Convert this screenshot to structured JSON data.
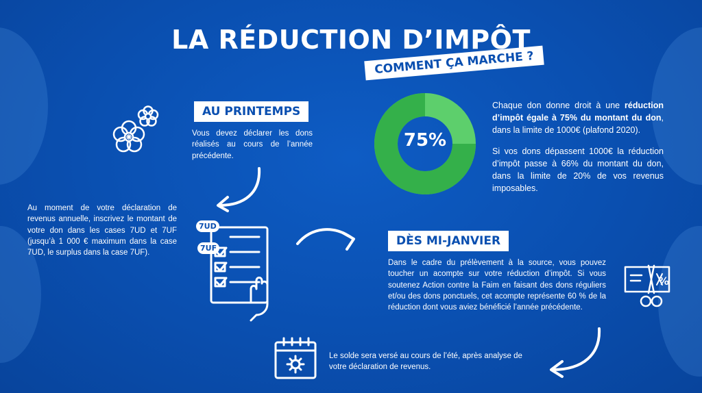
{
  "header": {
    "title": "LA RÉDUCTION D’IMPÔT",
    "subtitle": "COMMENT ÇA MARCHE ?"
  },
  "spring": {
    "tag": "AU PRINTEMPS",
    "text": "Vous devez déclarer les dons réalisés au cours de l’année précédente."
  },
  "declaration": {
    "text": "Au moment de votre déclaration de revenus annuelle, inscrivez le montant de votre don dans les cases 7UD et 7UF (jusqu’à 1 000 € maximum dans la case 7UD, le surplus dans la case 7UF).",
    "box_labels": [
      "7UD",
      "7UF"
    ]
  },
  "donut": {
    "value_label": "75%",
    "fraction": 0.75,
    "colors": {
      "filled": "#34b04a",
      "rest": "#5dcf6c",
      "hole": "#0a4fb0"
    }
  },
  "rates": {
    "p1_start": "Chaque don donne droit à une ",
    "p1_bold": "réduction d’impôt égale à 75% du montant du don",
    "p1_end": ", dans la limite de 1000€ (plafond 2020).",
    "p2": "Si vos dons dépassent 1000€ la réduction d’impôt passe à 66% du montant du don, dans la limite de 20% de vos revenus imposables."
  },
  "january": {
    "tag": "DÈS MI-JANVIER",
    "text": "Dans le cadre du prélèvement à la source, vous pouvez toucher un acompte sur votre réduction d’impôt. Si vous soutenez Action contre la Faim en faisant des dons réguliers et/ou des dons ponctuels, cet acompte représente 60 % de la réduction dont vous aviez bénéficié l’année précédente."
  },
  "summer": {
    "text": "Le solde sera versé au cours de l’été, après analyse de votre déclaration de revenus."
  },
  "icons": [
    "flowers-icon",
    "checklist-form-icon",
    "coupon-scissors-icon",
    "calendar-gear-icon",
    "arrow-icon"
  ]
}
